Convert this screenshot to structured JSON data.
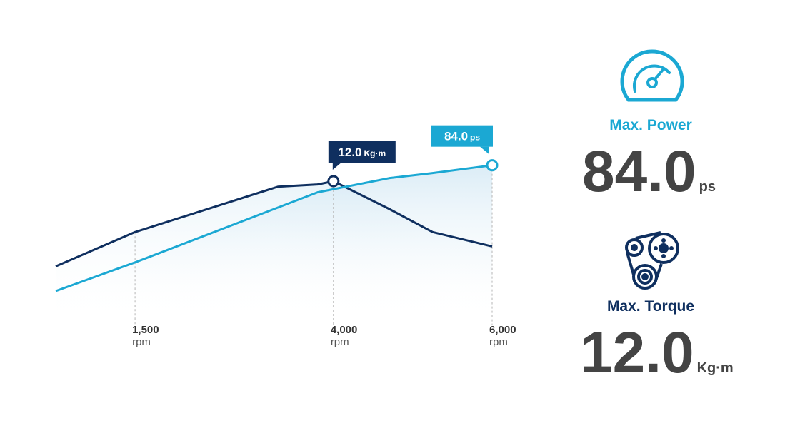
{
  "chart_data": {
    "type": "line",
    "x_unit": "rpm",
    "xlim": [
      500,
      6000
    ],
    "xticks": [
      {
        "value": 1500,
        "label": "1,500"
      },
      {
        "value": 4000,
        "label": "4,000"
      },
      {
        "value": 6000,
        "label": "6,000"
      }
    ],
    "ylim": [
      0,
      100
    ],
    "y2lim": [
      0,
      16
    ],
    "grid": true,
    "series": [
      {
        "name": "Max. Torque",
        "color": "#0f2f5f",
        "axis": "y2",
        "peak_label": "12.0",
        "unit": "Kg·m",
        "x": [
          500,
          1500,
          3300,
          3800,
          4000,
          4700,
          5250,
          6000
        ],
        "values": [
          4.3,
          7.4,
          11.5,
          11.7,
          12.0,
          9.5,
          7.4,
          6.1
        ]
      },
      {
        "name": "Max. Power",
        "color": "#1ba8d3",
        "peak_label": "84.0",
        "unit": "ps",
        "x": [
          500,
          1500,
          3800,
          4700,
          5250,
          6000
        ],
        "values": [
          12.9,
          29.1,
          68.7,
          76.7,
          79.6,
          84.0
        ]
      }
    ]
  }
}
